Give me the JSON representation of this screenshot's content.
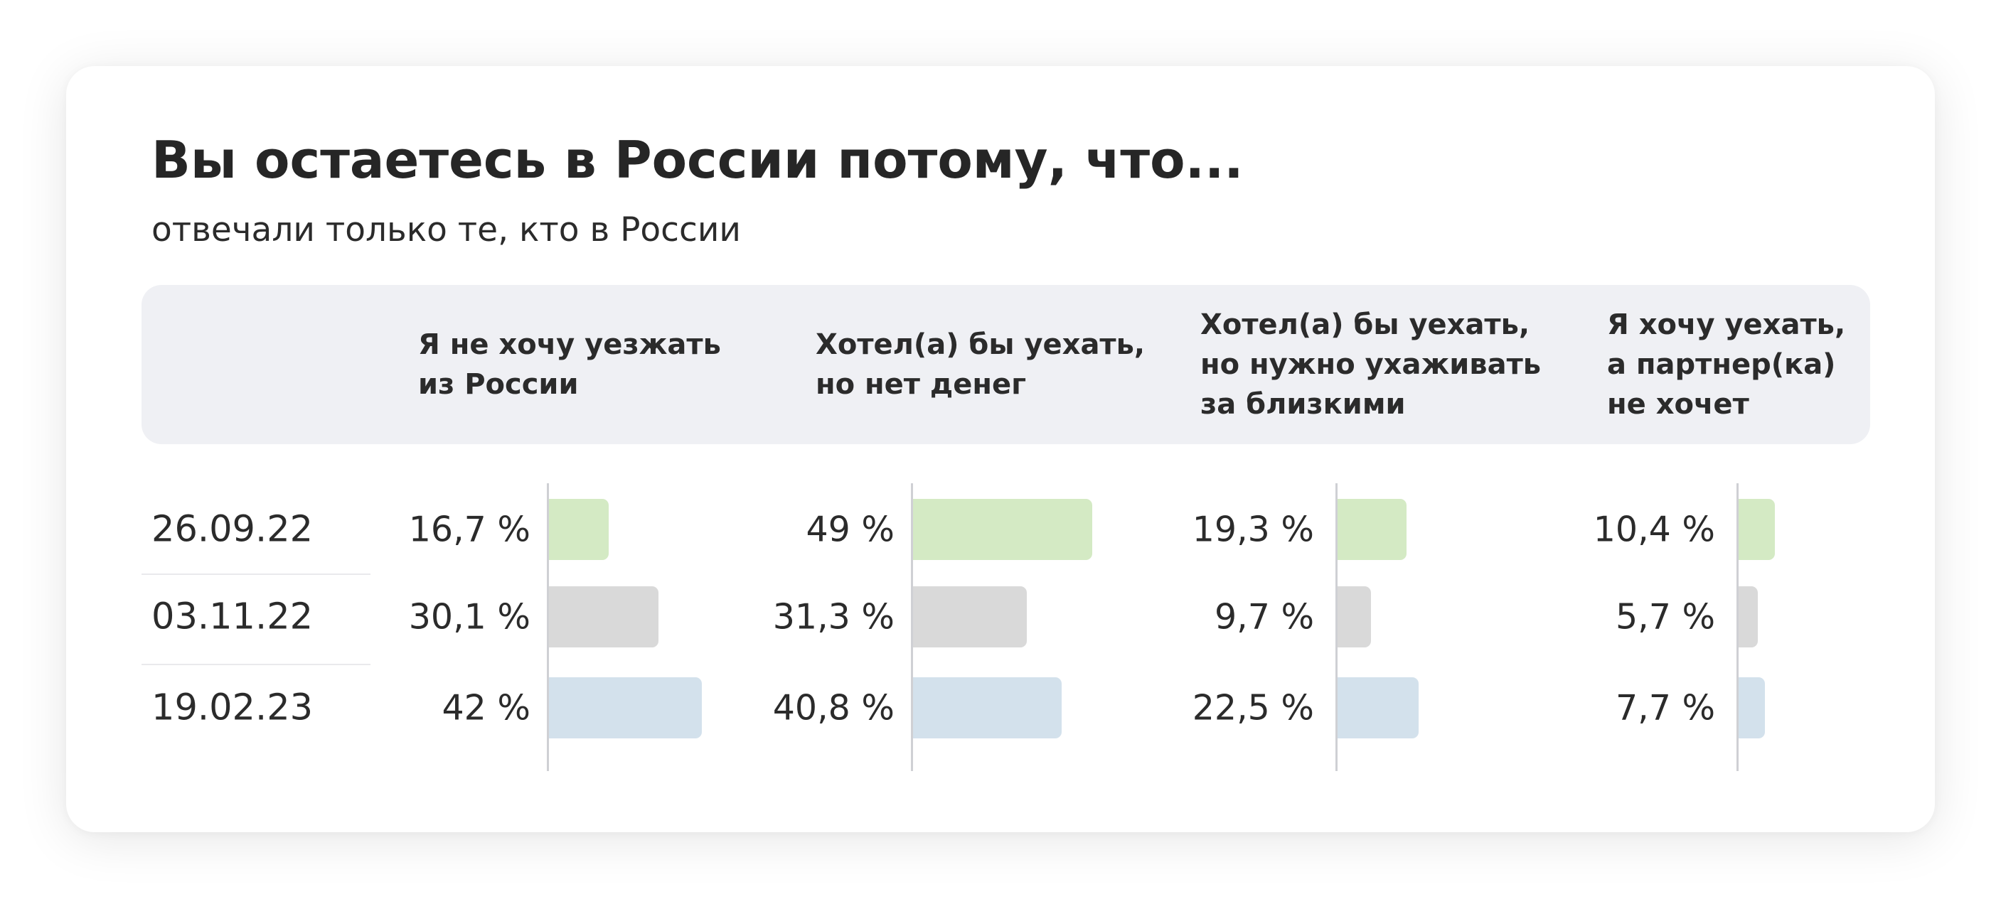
{
  "title": "Вы остаетесь в России потому, что...",
  "subtitle": "отвечали только те, кто в России",
  "chart_data": {
    "type": "bar",
    "orientation": "horizontal",
    "title": "Вы остаетесь в России потому, что...",
    "subtitle": "отвечали только те, кто в России",
    "categories": [
      "26.09.22",
      "03.11.22",
      "19.02.23"
    ],
    "groups": [
      {
        "name": "Я не хочу уезжать\nиз России",
        "values": [
          16.7,
          30.1,
          42
        ],
        "labels": [
          "16,7 %",
          "30,1 %",
          "42 %"
        ]
      },
      {
        "name": "Хотел(а) бы уехать,\nно нет денег",
        "values": [
          49,
          31.3,
          40.8
        ],
        "labels": [
          "49 %",
          "31,3 %",
          "40,8 %"
        ]
      },
      {
        "name": "Хотел(а) бы уехать,\nно нужно ухаживать\nза близкими",
        "values": [
          19.3,
          9.7,
          22.5
        ],
        "labels": [
          "19,3 %",
          "9,7 %",
          "22,5 %"
        ]
      },
      {
        "name": "Я хочу уехать,\nа партнер(ка)\nне хочет",
        "values": [
          10.4,
          5.7,
          7.7
        ],
        "labels": [
          "10,4 %",
          "5,7 %",
          "7,7 %"
        ]
      }
    ],
    "row_colors": [
      "#d4eac4",
      "#d9d9d9",
      "#d3e1ec"
    ],
    "grid": false,
    "legend": "none"
  }
}
